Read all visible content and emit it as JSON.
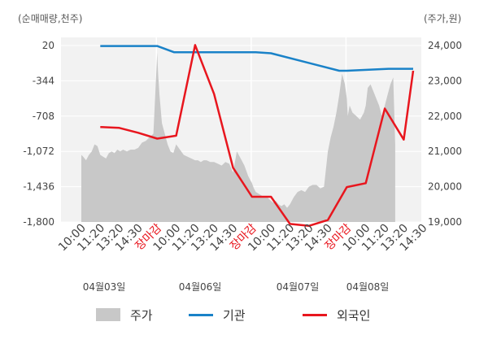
{
  "chart_data": {
    "type": "line",
    "left_unit_label": "(순매매량,천주)",
    "right_unit_label": "(주가,원)",
    "left_axis": {
      "ticks": [
        "20",
        "-344",
        "-708",
        "-1,072",
        "-1,436",
        "-1,800"
      ],
      "values": [
        20,
        -344,
        -708,
        -1072,
        -1436,
        -1800
      ],
      "range": [
        -1800,
        120
      ]
    },
    "right_axis": {
      "ticks": [
        "24,000",
        "23,000",
        "22,000",
        "21,000",
        "20,000",
        "19,000"
      ],
      "values": [
        24000,
        23000,
        22000,
        21000,
        20000,
        19000
      ],
      "range": [
        19000,
        24000
      ]
    },
    "x_ticks": [
      {
        "label": "10:00",
        "red": false
      },
      {
        "label": "11:20",
        "red": false
      },
      {
        "label": "13:20",
        "red": false
      },
      {
        "label": "14:30",
        "red": false
      },
      {
        "label": "장마감",
        "red": true
      },
      {
        "label": "10:00",
        "red": false
      },
      {
        "label": "11:20",
        "red": false
      },
      {
        "label": "13:20",
        "red": false
      },
      {
        "label": "14:30",
        "red": false
      },
      {
        "label": "장마감",
        "red": true
      },
      {
        "label": "10:00",
        "red": false
      },
      {
        "label": "11:20",
        "red": false
      },
      {
        "label": "13:20",
        "red": false
      },
      {
        "label": "14:30",
        "red": false
      },
      {
        "label": "장마감",
        "red": true
      },
      {
        "label": "10:00",
        "red": false
      },
      {
        "label": "11:20",
        "red": false
      },
      {
        "label": "13:20",
        "red": false
      },
      {
        "label": "14:30",
        "red": false
      }
    ],
    "dates": [
      "04월03일",
      "04월06일",
      "04월07일",
      "04월08일"
    ],
    "series": [
      {
        "name": "주가",
        "kind": "area",
        "axis": "right",
        "color": "#c8c8c8",
        "x": [
          0,
          0.1,
          0.25,
          0.4,
          0.55,
          0.7,
          0.85,
          1.0,
          1.15,
          1.3,
          1.45,
          1.6,
          1.75,
          1.9,
          2.05,
          2.2,
          2.4,
          2.6,
          2.8,
          3.0,
          3.2,
          3.4,
          3.6,
          3.8,
          4.0,
          4.05,
          4.12,
          4.25,
          4.4,
          4.55,
          4.7,
          4.85,
          5.0,
          5.2,
          5.4,
          5.6,
          5.8,
          6.0,
          6.15,
          6.3,
          6.45,
          6.6,
          6.8,
          7.0,
          7.2,
          7.4,
          7.6,
          7.8,
          8.0,
          8.2,
          8.4,
          8.6,
          8.8,
          9.0,
          9.1,
          9.2,
          9.35,
          9.5,
          9.65,
          9.8,
          10.0,
          10.1,
          10.25,
          10.4,
          10.55,
          10.7,
          10.85,
          11.0,
          11.2,
          11.4,
          11.6,
          11.8,
          12.0,
          12.2,
          12.4,
          12.6,
          12.8,
          13.0,
          13.15,
          13.3,
          13.45,
          13.6,
          13.75,
          13.9,
          14.0,
          14.05,
          14.15,
          14.3,
          14.5,
          14.7,
          14.9,
          15.0,
          15.1,
          15.25,
          15.4,
          15.55,
          15.7,
          15.85,
          16.0,
          16.15,
          16.3,
          16.45,
          16.55
        ],
        "values": [
          20900,
          20850,
          20750,
          20900,
          21000,
          21200,
          21150,
          20900,
          20850,
          20800,
          20950,
          21000,
          20950,
          21050,
          21000,
          21050,
          21000,
          21050,
          21050,
          21100,
          21250,
          21300,
          21400,
          21500,
          23800,
          23200,
          22600,
          21800,
          21500,
          21200,
          21000,
          20950,
          21200,
          21050,
          20900,
          20850,
          20800,
          20750,
          20750,
          20700,
          20750,
          20750,
          20700,
          20700,
          20650,
          20600,
          20700,
          20650,
          20400,
          21000,
          20800,
          20600,
          20300,
          20100,
          19950,
          19850,
          19800,
          19750,
          19700,
          19700,
          19600,
          19550,
          19600,
          19500,
          19450,
          19500,
          19400,
          19500,
          19700,
          19850,
          19900,
          19850,
          20000,
          20050,
          20050,
          19950,
          20000,
          21000,
          21400,
          21700,
          22100,
          22600,
          23200,
          22900,
          22500,
          22000,
          22300,
          22100,
          22000,
          21900,
          22100,
          22300,
          22800,
          22900,
          22700,
          22500,
          22300,
          22000,
          22300,
          22600,
          22900,
          23100,
          21200
        ]
      },
      {
        "name": "기관",
        "kind": "line",
        "axis": "left",
        "color": "#1a82c8",
        "x": [
          1.0,
          4.0,
          4.9,
          9.2,
          10.0,
          13.6,
          14.0,
          16.2,
          17.5
        ],
        "values": [
          15,
          15,
          -50,
          -50,
          -60,
          -240,
          -240,
          -220,
          -220
        ]
      },
      {
        "name": "외국인",
        "kind": "line",
        "axis": "left",
        "color": "#e8161e",
        "x": [
          1.0,
          2.0,
          3.0,
          4.0,
          5.0,
          6.0,
          7.0,
          8.0,
          9.0,
          10.0,
          11.0,
          12.0,
          13.0,
          14.0,
          15.0,
          16.0,
          17.0,
          17.5
        ],
        "values": [
          -820,
          -830,
          -880,
          -940,
          -910,
          25,
          -480,
          -1240,
          -1540,
          -1540,
          -1820,
          -1840,
          -1780,
          -1440,
          -1400,
          -630,
          -950,
          -240
        ]
      }
    ]
  }
}
